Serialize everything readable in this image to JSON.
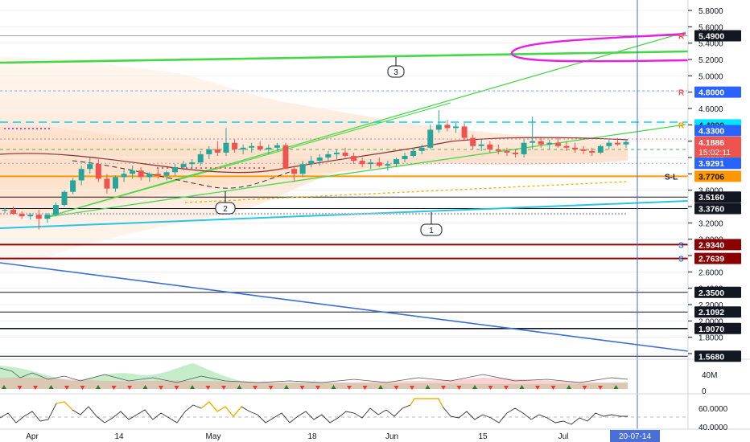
{
  "chart_data": {
    "type": "line",
    "title": "",
    "xlabel": "",
    "ylabel": "",
    "ylim": [
      1.5,
      5.95
    ],
    "y_ticks": [
      "5.8000",
      "5.6000",
      "5.4000",
      "5.2000",
      "5.0000",
      "4.8000",
      "4.6000",
      "4.4000",
      "4.2000",
      "4.0000",
      "3.8000",
      "3.6000",
      "3.4000",
      "3.2000",
      "3.0000",
      "2.8000",
      "2.6000",
      "2.4000",
      "2.2000",
      "2.0000",
      "1.8000",
      "1.6000"
    ],
    "x_ticks": [
      "Apr",
      "14",
      "May",
      "18",
      "Jun",
      "15",
      "Jul"
    ],
    "x_cursor_label": "20-07-14",
    "countdown_label": "15:02:11",
    "price_levels": [
      {
        "label": "5.4900",
        "value": 5.49,
        "bg": "#131722",
        "fg": "#ffffff",
        "marker": "R"
      },
      {
        "label": "4.8000",
        "value": 4.8,
        "bg": "#2962ff",
        "fg": "#ffffff",
        "marker": "R"
      },
      {
        "label": "4.4000",
        "value": 4.4,
        "bg": "#00e5ff",
        "fg": "#131722",
        "marker": "R"
      },
      {
        "label": "4.3300",
        "value": 4.33,
        "bg": "#2962ff",
        "fg": "#ffffff",
        "marker": ""
      },
      {
        "label": "4.1886",
        "value": 4.1886,
        "bg": "#ef5350",
        "fg": "#ffffff",
        "marker": ""
      },
      {
        "label": "4.0300",
        "value": 4.03,
        "bg": "#4caf50",
        "fg": "#ffffff",
        "marker": ""
      },
      {
        "label": "3.9291",
        "value": 3.9291,
        "bg": "#2962ff",
        "fg": "#ffffff",
        "marker": ""
      },
      {
        "label": "3.7706",
        "value": 3.7706,
        "bg": "#ff9800",
        "fg": "#131722",
        "marker": "S-L"
      },
      {
        "label": "3.5160",
        "value": 3.516,
        "bg": "#131722",
        "fg": "#ffffff",
        "marker": ""
      },
      {
        "label": "3.3760",
        "value": 3.376,
        "bg": "#131722",
        "fg": "#ffffff",
        "marker": ""
      },
      {
        "label": "2.9340",
        "value": 2.934,
        "bg": "#8b0000",
        "fg": "#ffffff",
        "marker": "S"
      },
      {
        "label": "2.7639",
        "value": 2.7639,
        "bg": "#8b0000",
        "fg": "#ffffff",
        "marker": "S"
      },
      {
        "label": "2.3500",
        "value": 2.35,
        "bg": "#131722",
        "fg": "#ffffff",
        "marker": ""
      },
      {
        "label": "2.1092",
        "value": 2.1092,
        "bg": "#131722",
        "fg": "#ffffff",
        "marker": ""
      },
      {
        "label": "1.9070",
        "value": 1.907,
        "bg": "#131722",
        "fg": "#ffffff",
        "marker": ""
      },
      {
        "label": "1.5680",
        "value": 1.568,
        "bg": "#131722",
        "fg": "#ffffff",
        "marker": ""
      }
    ],
    "annotations": [
      "1",
      "2",
      "3"
    ],
    "candles": [
      [
        3.35,
        3.38,
        3.32,
        3.36
      ],
      [
        3.36,
        3.4,
        3.3,
        3.31
      ],
      [
        3.31,
        3.34,
        3.25,
        3.28
      ],
      [
        3.28,
        3.32,
        3.24,
        3.3
      ],
      [
        3.3,
        3.36,
        3.12,
        3.25
      ],
      [
        3.25,
        3.32,
        3.2,
        3.3
      ],
      [
        3.3,
        3.45,
        3.28,
        3.42
      ],
      [
        3.42,
        3.6,
        3.4,
        3.58
      ],
      [
        3.58,
        3.75,
        3.55,
        3.72
      ],
      [
        3.72,
        3.9,
        3.66,
        3.86
      ],
      [
        3.86,
        4.0,
        3.8,
        3.92
      ],
      [
        3.92,
        3.98,
        3.7,
        3.74
      ],
      [
        3.74,
        3.8,
        3.56,
        3.62
      ],
      [
        3.62,
        3.78,
        3.58,
        3.76
      ],
      [
        3.76,
        3.86,
        3.7,
        3.8
      ],
      [
        3.8,
        3.9,
        3.74,
        3.84
      ],
      [
        3.84,
        3.88,
        3.72,
        3.76
      ],
      [
        3.76,
        3.82,
        3.7,
        3.8
      ],
      [
        3.8,
        3.86,
        3.74,
        3.78
      ],
      [
        3.78,
        3.84,
        3.72,
        3.82
      ],
      [
        3.82,
        3.92,
        3.78,
        3.88
      ],
      [
        3.88,
        3.96,
        3.84,
        3.92
      ],
      [
        3.92,
        3.98,
        3.86,
        3.94
      ],
      [
        3.94,
        4.08,
        3.9,
        4.04
      ],
      [
        4.04,
        4.14,
        3.98,
        4.1
      ],
      [
        4.1,
        4.2,
        4.02,
        4.06
      ],
      [
        4.06,
        4.36,
        4.02,
        4.18
      ],
      [
        4.18,
        4.22,
        4.06,
        4.1
      ],
      [
        4.1,
        4.16,
        4.04,
        4.12
      ],
      [
        4.12,
        4.18,
        4.06,
        4.14
      ],
      [
        4.14,
        4.2,
        4.08,
        4.1
      ],
      [
        4.1,
        4.16,
        4.04,
        4.12
      ],
      [
        4.12,
        4.18,
        4.08,
        4.15
      ],
      [
        4.15,
        4.18,
        3.9,
        3.86
      ],
      [
        3.86,
        3.9,
        3.7,
        3.8
      ],
      [
        3.8,
        3.96,
        3.76,
        3.92
      ],
      [
        3.92,
        4.02,
        3.88,
        3.96
      ],
      [
        3.96,
        4.04,
        3.9,
        4.0
      ],
      [
        4.0,
        4.08,
        3.96,
        4.04
      ],
      [
        4.04,
        4.1,
        3.98,
        4.06
      ],
      [
        4.06,
        4.12,
        4.0,
        4.02
      ],
      [
        4.02,
        4.06,
        3.92,
        3.96
      ],
      [
        3.96,
        4.0,
        3.88,
        3.92
      ],
      [
        3.92,
        3.98,
        3.86,
        3.94
      ],
      [
        3.94,
        4.0,
        3.88,
        3.9
      ],
      [
        3.9,
        3.96,
        3.84,
        3.92
      ],
      [
        3.92,
        4.0,
        3.88,
        3.98
      ],
      [
        3.98,
        4.06,
        3.94,
        4.02
      ],
      [
        4.02,
        4.12,
        4.0,
        4.08
      ],
      [
        4.08,
        4.16,
        4.04,
        4.12
      ],
      [
        4.12,
        4.4,
        4.1,
        4.34
      ],
      [
        4.34,
        4.58,
        4.3,
        4.4
      ],
      [
        4.4,
        4.46,
        4.32,
        4.36
      ],
      [
        4.36,
        4.42,
        4.3,
        4.38
      ],
      [
        4.38,
        4.42,
        4.2,
        4.24
      ],
      [
        4.24,
        4.28,
        4.1,
        4.14
      ],
      [
        4.14,
        4.22,
        4.08,
        4.16
      ],
      [
        4.16,
        4.2,
        4.06,
        4.1
      ],
      [
        4.1,
        4.16,
        4.04,
        4.08
      ],
      [
        4.08,
        4.12,
        4.02,
        4.06
      ],
      [
        4.06,
        4.1,
        4.0,
        4.04
      ],
      [
        4.04,
        4.22,
        4.0,
        4.18
      ],
      [
        4.18,
        4.5,
        4.1,
        4.2
      ],
      [
        4.2,
        4.24,
        4.12,
        4.16
      ],
      [
        4.16,
        4.22,
        4.1,
        4.18
      ],
      [
        4.18,
        4.24,
        4.12,
        4.14
      ],
      [
        4.14,
        4.2,
        4.08,
        4.12
      ],
      [
        4.12,
        4.18,
        4.06,
        4.1
      ],
      [
        4.1,
        4.14,
        4.04,
        4.08
      ],
      [
        4.08,
        4.12,
        4.02,
        4.06
      ],
      [
        4.06,
        4.16,
        4.04,
        4.14
      ],
      [
        4.14,
        4.22,
        4.1,
        4.18
      ],
      [
        4.18,
        4.24,
        4.14,
        4.16
      ],
      [
        4.16,
        4.22,
        4.12,
        4.19
      ]
    ]
  }
}
